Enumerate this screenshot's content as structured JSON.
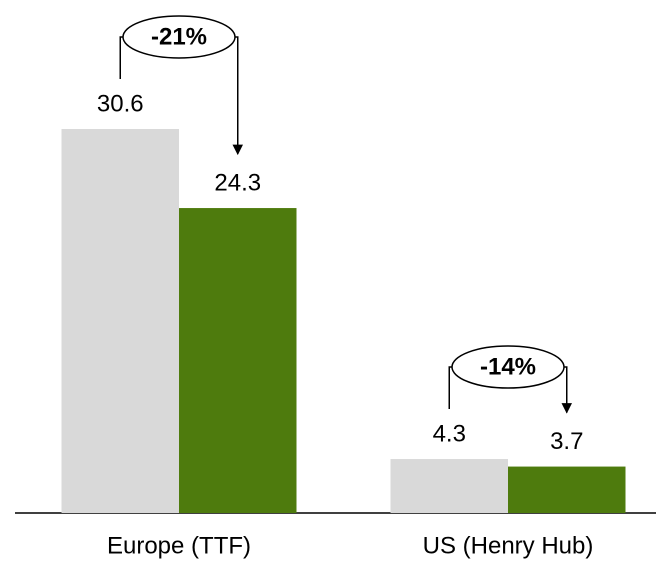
{
  "chart_data": {
    "type": "bar",
    "categories": [
      "Europe (TTF)",
      "US (Henry Hub)"
    ],
    "series": [
      {
        "color": "#d9d9d9",
        "values": [
          30.6,
          4.3
        ]
      },
      {
        "color": "#4e7b0d",
        "values": [
          24.3,
          3.7
        ]
      }
    ],
    "annotations": [
      "-21%",
      "-14%"
    ]
  }
}
